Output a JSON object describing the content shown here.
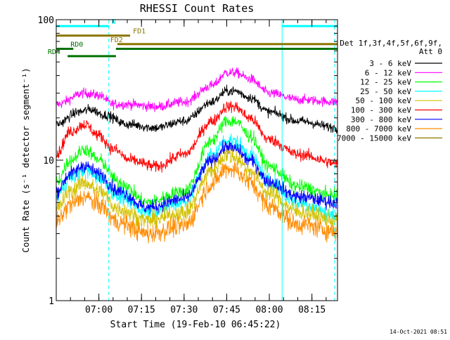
{
  "chart_data": {
    "type": "line",
    "title": "RHESSI Count Rates",
    "xlabel": "Start Time (19-Feb-10 06:45:22)",
    "ylabel": "Count Rate (s⁻¹ detector segment⁻¹)",
    "ylog": true,
    "ylim": [
      1,
      100
    ],
    "y_ticks": [
      {
        "value": 1,
        "label": "1"
      },
      {
        "value": 10,
        "label": "10"
      },
      {
        "value": 100,
        "label": "100"
      }
    ],
    "xlim_minutes_after_0645": [
      0,
      99
    ],
    "x_ticks": [
      {
        "label": "07:00",
        "minute": 15
      },
      {
        "label": "07:15",
        "minute": 30
      },
      {
        "label": "07:30",
        "minute": 45
      },
      {
        "label": "07:45",
        "minute": 60
      },
      {
        "label": "08:00",
        "minute": 75
      },
      {
        "label": "08:15",
        "minute": 90
      }
    ],
    "grid": false,
    "legend": {
      "placement": "right",
      "title_lines": [
        "Det 1f,3f,4f,5f,6f,9f,",
        "Att 0"
      ],
      "entries": [
        {
          "label": "3 - 6 keV",
          "color": "#000000"
        },
        {
          "label": "6 - 12 keV",
          "color": "#ff00ff"
        },
        {
          "label": "12 - 25 keV",
          "color": "#00ff00"
        },
        {
          "label": "25 - 50 keV",
          "color": "#00ffff"
        },
        {
          "label": "50 - 100 keV",
          "color": "#d4c200"
        },
        {
          "label": "100 - 300 keV",
          "color": "#ff0000"
        },
        {
          "label": "300 - 800 keV",
          "color": "#0000ff"
        },
        {
          "label": "800 - 7000 keV",
          "color": "#ff8c00"
        },
        {
          "label": "7000 - 15000 keV",
          "color": "#8b7500"
        }
      ]
    },
    "series": [
      {
        "name": "6 - 12 keV",
        "color": "#ff00ff",
        "noise": 0.05,
        "points": [
          [
            0,
            25
          ],
          [
            10,
            30
          ],
          [
            15,
            29
          ],
          [
            20,
            25
          ],
          [
            25,
            25
          ],
          [
            35,
            24
          ],
          [
            45,
            26
          ],
          [
            55,
            34
          ],
          [
            60,
            42
          ],
          [
            63,
            42
          ],
          [
            68,
            38
          ],
          [
            75,
            30
          ],
          [
            85,
            27
          ],
          [
            99,
            26
          ]
        ]
      },
      {
        "name": "3 - 6 keV",
        "color": "#000000",
        "noise": 0.05,
        "points": [
          [
            0,
            18
          ],
          [
            8,
            22
          ],
          [
            12,
            23
          ],
          [
            17,
            21
          ],
          [
            25,
            18
          ],
          [
            35,
            17
          ],
          [
            45,
            19
          ],
          [
            55,
            26
          ],
          [
            60,
            31
          ],
          [
            63,
            31
          ],
          [
            68,
            28
          ],
          [
            75,
            22
          ],
          [
            85,
            19
          ],
          [
            99,
            17
          ]
        ]
      },
      {
        "name": "100 - 300 keV",
        "color": "#ff0000",
        "noise": 0.06,
        "points": [
          [
            0,
            11
          ],
          [
            5,
            16
          ],
          [
            10,
            18
          ],
          [
            15,
            15
          ],
          [
            20,
            12
          ],
          [
            26,
            10
          ],
          [
            35,
            9
          ],
          [
            45,
            11
          ],
          [
            55,
            19
          ],
          [
            60,
            24
          ],
          [
            63,
            24
          ],
          [
            68,
            20
          ],
          [
            75,
            14
          ],
          [
            85,
            11
          ],
          [
            99,
            9.5
          ]
        ]
      },
      {
        "name": "12 - 25 keV",
        "color": "#00ff00",
        "noise": 0.07,
        "points": [
          [
            0,
            7
          ],
          [
            5,
            10
          ],
          [
            10,
            12
          ],
          [
            15,
            10
          ],
          [
            22,
            7
          ],
          [
            32,
            5
          ],
          [
            45,
            6
          ],
          [
            55,
            14
          ],
          [
            60,
            19
          ],
          [
            63,
            19
          ],
          [
            68,
            15
          ],
          [
            75,
            9
          ],
          [
            85,
            6.5
          ],
          [
            99,
            5.5
          ]
        ]
      },
      {
        "name": "25 - 50 keV",
        "color": "#00ffff",
        "noise": 0.08,
        "points": [
          [
            0,
            5.5
          ],
          [
            5,
            7.5
          ],
          [
            10,
            8.5
          ],
          [
            15,
            7.5
          ],
          [
            22,
            5.5
          ],
          [
            32,
            4.3
          ],
          [
            45,
            5
          ],
          [
            55,
            11
          ],
          [
            60,
            14
          ],
          [
            63,
            13.5
          ],
          [
            68,
            11
          ],
          [
            75,
            7
          ],
          [
            85,
            5
          ],
          [
            99,
            4
          ]
        ]
      },
      {
        "name": "300 - 800 keV",
        "color": "#0000ff",
        "noise": 0.07,
        "points": [
          [
            0,
            6
          ],
          [
            5,
            8
          ],
          [
            10,
            9.2
          ],
          [
            15,
            8
          ],
          [
            22,
            6
          ],
          [
            32,
            4.6
          ],
          [
            45,
            5.3
          ],
          [
            55,
            10
          ],
          [
            60,
            12.5
          ],
          [
            63,
            12
          ],
          [
            68,
            10
          ],
          [
            75,
            7
          ],
          [
            85,
            5.5
          ],
          [
            99,
            5
          ]
        ]
      },
      {
        "name": "50 - 100 keV",
        "color": "#d4c200",
        "noise": 0.09,
        "points": [
          [
            0,
            4.5
          ],
          [
            5,
            6
          ],
          [
            10,
            7
          ],
          [
            15,
            6
          ],
          [
            22,
            4.5
          ],
          [
            32,
            3.7
          ],
          [
            45,
            4.2
          ],
          [
            55,
            8.5
          ],
          [
            60,
            11
          ],
          [
            63,
            10.5
          ],
          [
            68,
            8.5
          ],
          [
            75,
            5.8
          ],
          [
            85,
            4.3
          ],
          [
            99,
            3.7
          ]
        ]
      },
      {
        "name": "800 - 7000 keV",
        "color": "#ff8c00",
        "noise": 0.1,
        "points": [
          [
            0,
            3.6
          ],
          [
            5,
            4.8
          ],
          [
            10,
            5.5
          ],
          [
            15,
            4.8
          ],
          [
            22,
            3.6
          ],
          [
            32,
            3
          ],
          [
            45,
            3.4
          ],
          [
            55,
            6.8
          ],
          [
            60,
            8.8
          ],
          [
            63,
            8.5
          ],
          [
            68,
            7
          ],
          [
            75,
            4.7
          ],
          [
            85,
            3.5
          ],
          [
            99,
            3.1
          ]
        ]
      }
    ],
    "vertical_lines": [
      {
        "minute": 18.5,
        "style": "dashed",
        "color": "#00ffff"
      },
      {
        "minute": 79.5,
        "style": "solid",
        "color": "#00ffff"
      },
      {
        "minute": 98,
        "style": "dashed",
        "color": "#00ffff"
      }
    ],
    "flag_bars": [
      {
        "label": "N",
        "color": "#00ffff",
        "segments": [
          [
            0,
            18.5
          ],
          [
            79.5,
            99
          ]
        ],
        "y_value": 90,
        "label_minute": 19.5
      },
      {
        "label": "FD1",
        "color": "#8b7500",
        "segments": [
          [
            0,
            26
          ]
        ],
        "y_value": 77,
        "label_minute": 27
      },
      {
        "label": "FD2",
        "color": "#8b7500",
        "segments": [
          [
            21.5,
            99
          ]
        ],
        "y_value": 67,
        "label_minute": 19
      },
      {
        "label": "RD0",
        "color": "#007000",
        "segments": [
          [
            -2,
            4
          ],
          [
            21,
            99
          ]
        ],
        "y_value": 62,
        "label_minute": 5
      },
      {
        "label": "RD4",
        "color": "#007000",
        "segments": [
          [
            4,
            21
          ]
        ],
        "y_value": 55,
        "label_minute": -3
      }
    ]
  },
  "footer": {
    "timestamp": "14-Oct-2021 08:51"
  }
}
